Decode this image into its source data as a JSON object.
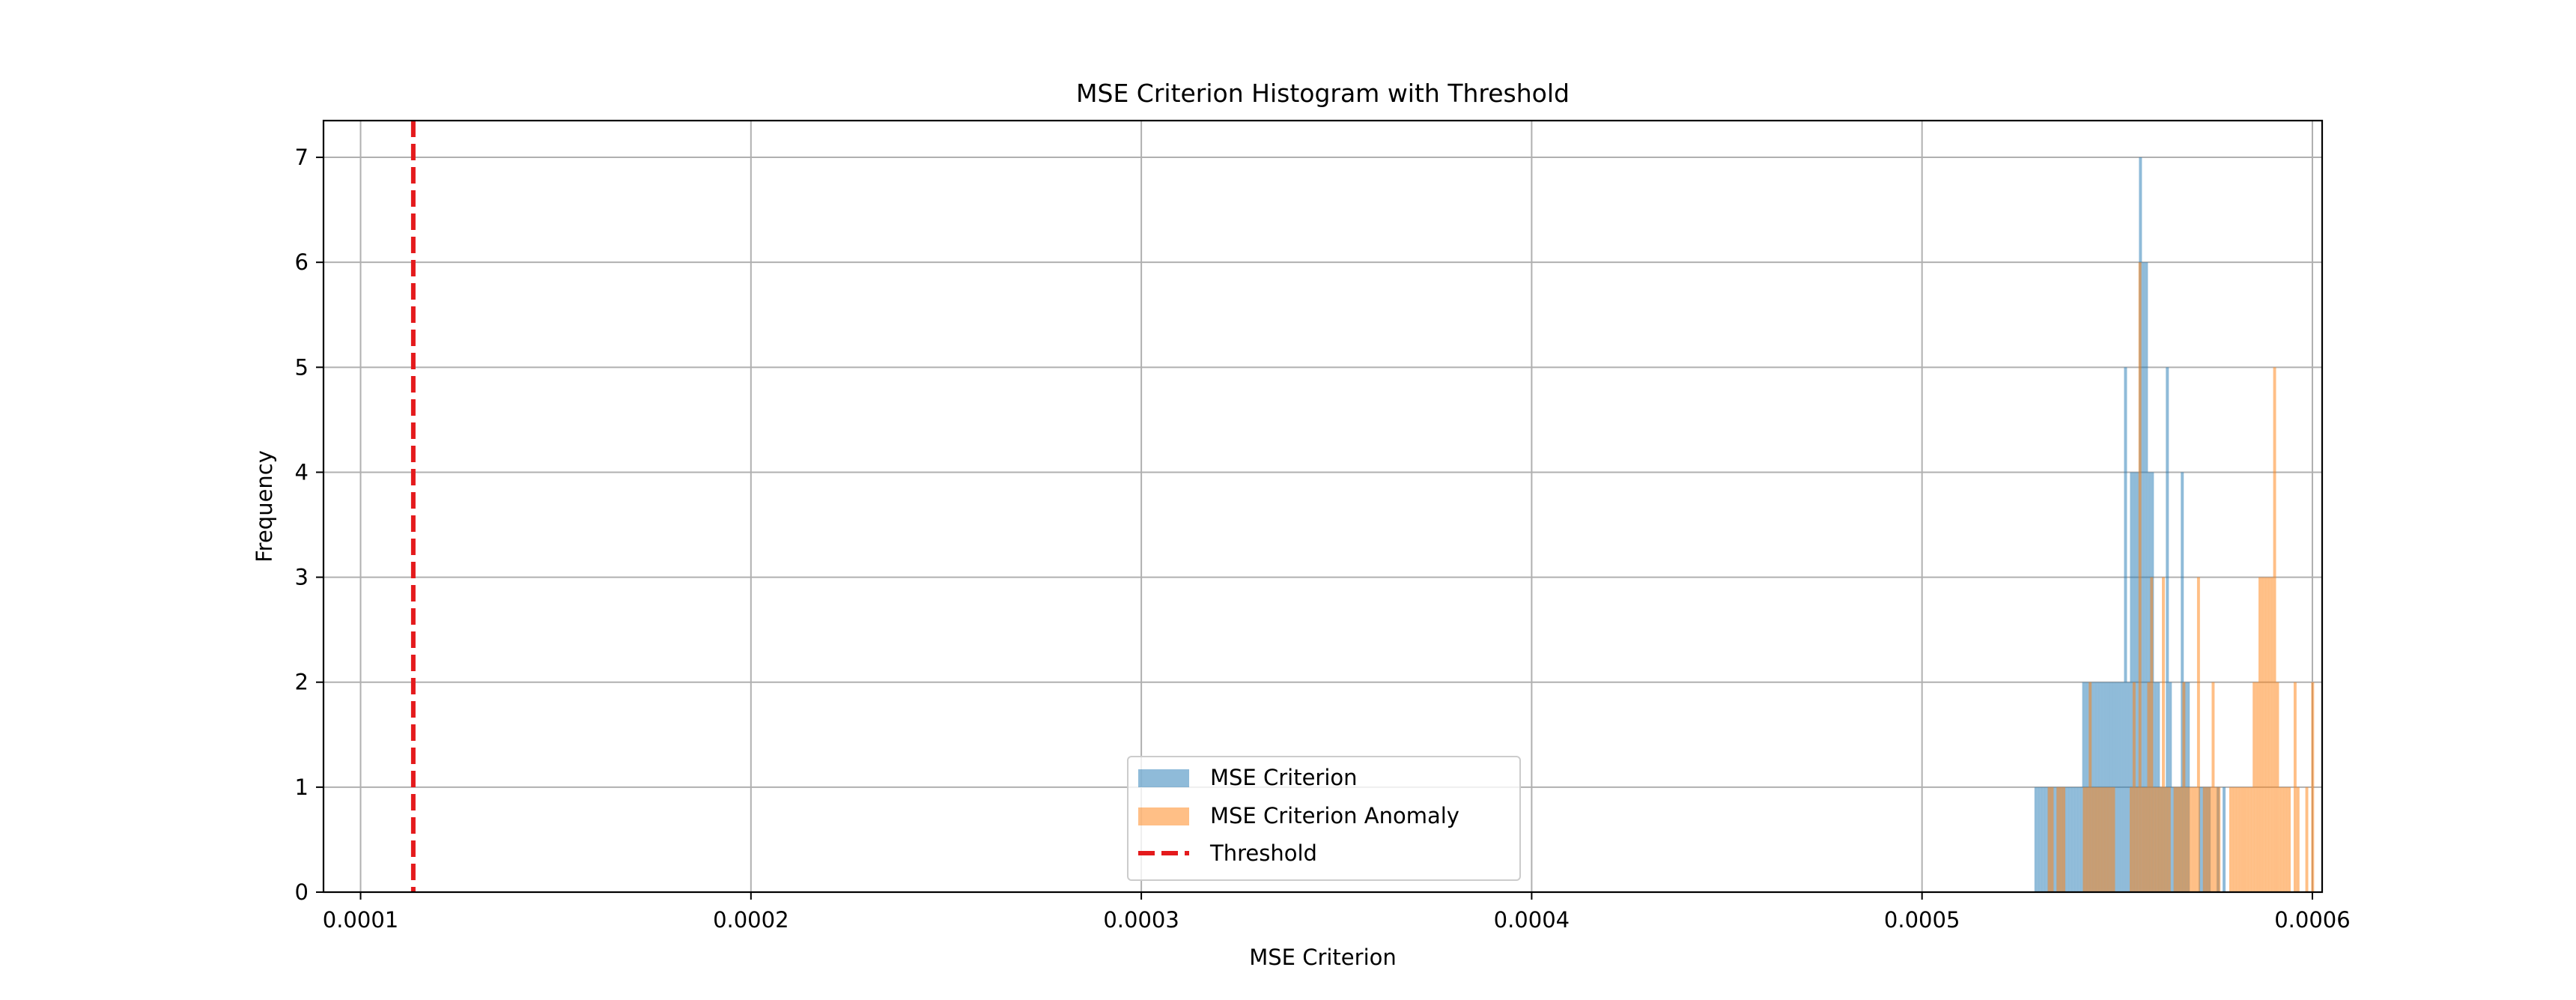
{
  "chart_data": {
    "type": "histogram",
    "title": "MSE Criterion Histogram with Threshold",
    "xlabel": "MSE Criterion",
    "ylabel": "Frequency",
    "xlim": [
      9.05e-05,
      0.0006025
    ],
    "ylim": [
      0,
      7.35
    ],
    "xticks": [
      0.0001,
      0.0002,
      0.0003,
      0.0004,
      0.0005,
      0.0006
    ],
    "xtick_labels": [
      "0.0001",
      "0.0002",
      "0.0003",
      "0.0004",
      "0.0005",
      "0.0006"
    ],
    "yticks": [
      0,
      1,
      2,
      3,
      4,
      5,
      6,
      7
    ],
    "ytick_labels": [
      "0",
      "1",
      "2",
      "3",
      "4",
      "5",
      "6",
      "7"
    ],
    "grid": true,
    "legend_position": "lower-center",
    "threshold": {
      "label": "Threshold",
      "value": 0.0001135,
      "color": "#e41a1c",
      "style": "dashed"
    },
    "series": [
      {
        "name": "MSE Criterion",
        "color": "#1f77b4",
        "alpha": 0.5,
        "bin_start": 0.0005288,
        "bin_width": 7.65e-07,
        "counts": [
          1,
          1,
          1,
          1,
          1,
          1,
          1,
          1,
          1,
          1,
          1,
          1,
          1,
          1,
          1,
          1,
          2,
          2,
          2,
          2,
          2,
          2,
          2,
          2,
          2,
          2,
          2,
          2,
          2,
          2,
          5,
          2,
          4,
          4,
          4,
          7,
          6,
          6,
          4,
          4,
          2,
          2,
          1,
          1,
          5,
          2,
          1,
          1,
          1,
          4,
          2,
          2,
          0,
          0,
          0,
          1,
          1,
          1,
          1,
          0,
          0,
          1,
          0,
          1
        ]
      },
      {
        "name": "MSE Criterion Anomaly",
        "color": "#ff7f0e",
        "alpha": 0.5,
        "bin_start": 0.0005322,
        "bin_width": 7.5e-07,
        "counts": [
          1,
          1,
          0,
          1,
          1,
          1,
          0,
          0,
          0,
          0,
          0,
          0,
          1,
          1,
          2,
          1,
          1,
          1,
          1,
          1,
          1,
          1,
          1,
          0,
          0,
          0,
          0,
          0,
          1,
          2,
          1,
          6,
          1,
          1,
          2,
          3,
          1,
          1,
          1,
          3,
          1,
          1,
          0,
          1,
          1,
          1,
          2,
          1,
          1,
          1,
          1,
          3,
          0,
          1,
          1,
          1,
          2,
          1,
          1,
          0,
          0,
          0,
          1,
          1,
          1,
          1,
          1,
          1,
          1,
          1,
          2,
          2,
          3,
          3,
          3,
          3,
          3,
          5,
          2,
          1,
          1,
          1,
          1,
          0,
          2,
          1,
          0,
          0,
          1,
          0,
          2
        ]
      }
    ]
  }
}
